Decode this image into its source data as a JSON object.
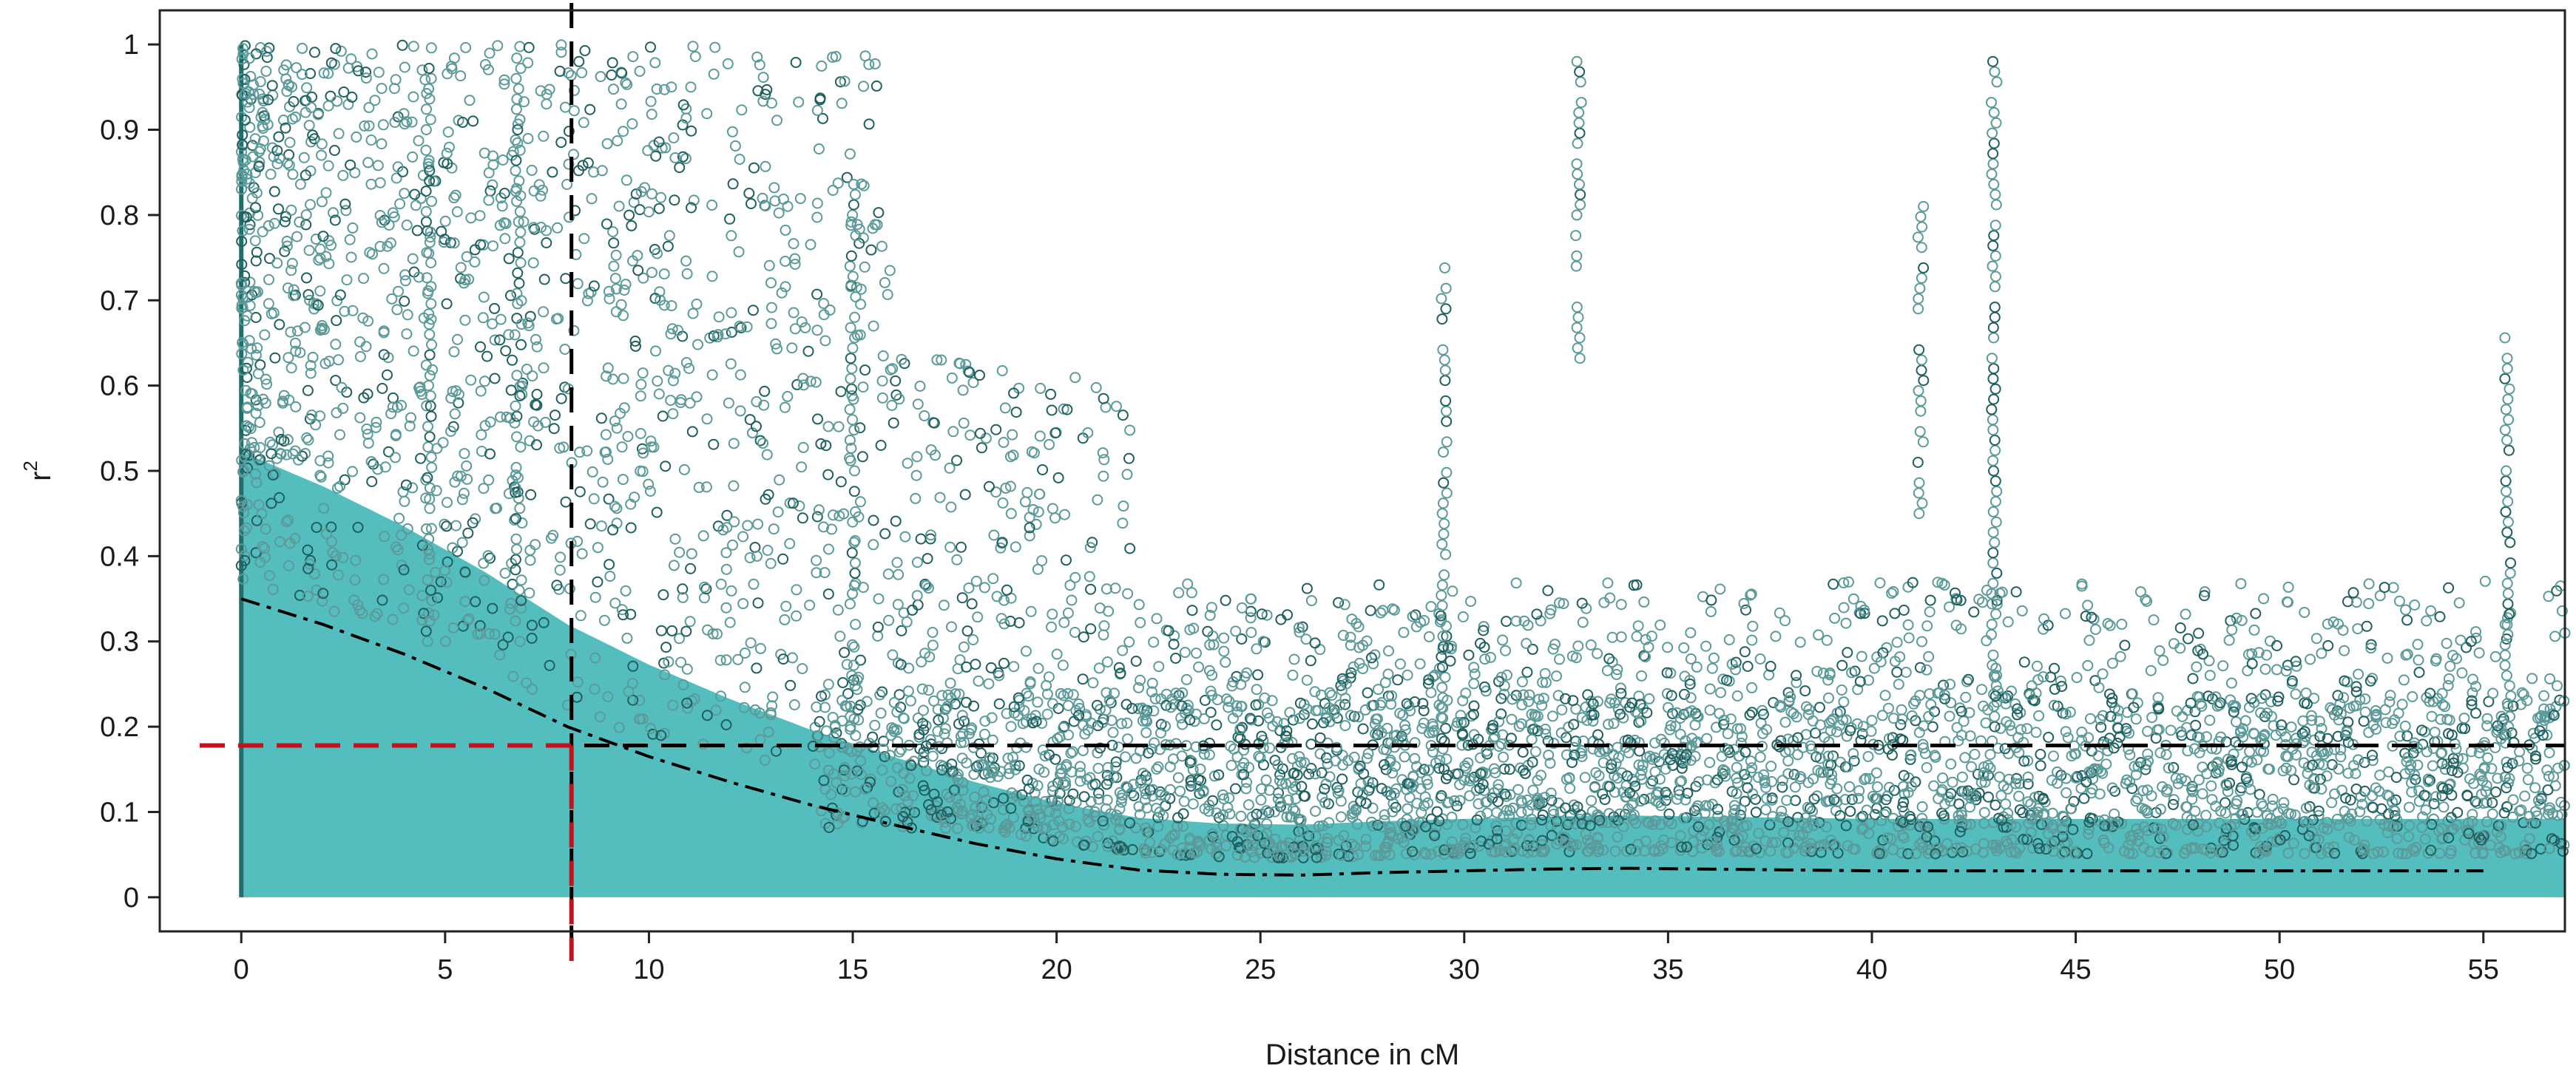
{
  "chart_data": {
    "type": "scatter",
    "xlabel": "Distance in cM",
    "ylabel": "r",
    "ylabel_superscript": "2",
    "xlim": [
      -2,
      57
    ],
    "ylim": [
      -0.04,
      1.04
    ],
    "x_ticks": [
      0,
      5,
      10,
      15,
      20,
      25,
      30,
      35,
      40,
      45,
      50,
      55
    ],
    "x_tick_labels": [
      "0",
      "5",
      "10",
      "15",
      "20",
      "25",
      "30",
      "35",
      "40",
      "45",
      "50",
      "55"
    ],
    "y_ticks": [
      0,
      0.1,
      0.2,
      0.3,
      0.4,
      0.5,
      0.6,
      0.7,
      0.8,
      0.9,
      1
    ],
    "y_tick_labels": [
      "0",
      "0.1",
      "0.2",
      "0.3",
      "0.4",
      "0.5",
      "0.6",
      "0.7",
      "0.8",
      "0.9",
      "1"
    ],
    "grid": false,
    "legend": "none",
    "colors": {
      "points_fill": "#45b8b8",
      "points_outline": "#1f5f5f",
      "decay_curve": "#000000",
      "threshold_line": "#000000",
      "critical_marker": "#c0141c"
    },
    "decay_curve": {
      "style": "dash-dot",
      "x": [
        0,
        2,
        4,
        6,
        8,
        10,
        12,
        14,
        16,
        18,
        20,
        22,
        24,
        26,
        28,
        30,
        32,
        34,
        36,
        38,
        40,
        42,
        44,
        46,
        48,
        50,
        52,
        55
      ],
      "y": [
        0.35,
        0.32,
        0.285,
        0.245,
        0.2,
        0.165,
        0.135,
        0.108,
        0.085,
        0.063,
        0.045,
        0.032,
        0.027,
        0.026,
        0.029,
        0.031,
        0.033,
        0.034,
        0.033,
        0.032,
        0.031,
        0.031,
        0.031,
        0.031,
        0.031,
        0.031,
        0.031,
        0.031
      ]
    },
    "threshold_r2": 0.178,
    "critical_distance_cm": 8.1,
    "point_density_description": "dense LD decay scatter with saturated band below the curve",
    "notable_point_columns": [
      {
        "x": 4.6,
        "ymin": 0.3,
        "ymax": 1.0
      },
      {
        "x": 6.8,
        "ymin": 0.3,
        "ymax": 0.99
      },
      {
        "x": 15.0,
        "ymin": 0.2,
        "ymax": 0.85
      },
      {
        "x": 29.5,
        "ymin": 0.15,
        "ymax": 0.74
      },
      {
        "x": 32.8,
        "ymin": 0.62,
        "ymax": 0.99
      },
      {
        "x": 43.0,
        "ymin": 0.2,
        "ymax": 0.99
      },
      {
        "x": 41.2,
        "ymin": 0.45,
        "ymax": 0.82
      },
      {
        "x": 55.6,
        "ymin": 0.2,
        "ymax": 0.66
      }
    ]
  }
}
